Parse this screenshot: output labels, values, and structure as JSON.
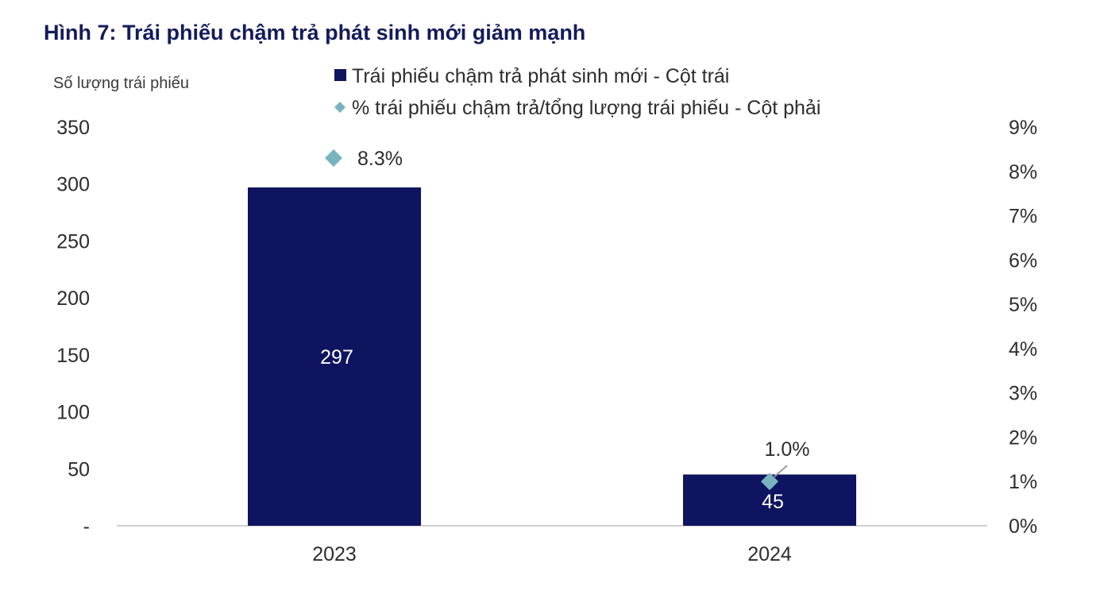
{
  "figure_title": "Hình 7: Trái phiếu chậm trả phát sinh mới giảm mạnh",
  "chart_data": {
    "type": "bar",
    "title": "Hình 7: Trái phiếu chậm trả phát sinh mới giảm mạnh",
    "ylabel": "Số lượng trái phiếu",
    "ylabel_right": "",
    "xlabel": "",
    "categories": [
      "2023",
      "2024"
    ],
    "ylim": [
      0,
      350
    ],
    "ylim_right": [
      0,
      9
    ],
    "y_ticks": [
      "-",
      "50",
      "100",
      "150",
      "200",
      "250",
      "300",
      "350"
    ],
    "y_right_ticks": [
      "0%",
      "1%",
      "2%",
      "3%",
      "4%",
      "5%",
      "6%",
      "7%",
      "8%",
      "9%"
    ],
    "legend_position": "top",
    "grid": false,
    "series": [
      {
        "name": "Trái phiếu chậm trả phát sinh mới - Cột trái",
        "type": "bar",
        "axis": "left",
        "values": [
          297,
          45
        ],
        "labels": [
          "297",
          "45"
        ],
        "color": "#0f1460"
      },
      {
        "name": "% trái phiếu chậm trả/tổng lượng trái phiếu - Cột phải",
        "type": "scatter",
        "marker": "diamond",
        "axis": "right",
        "values": [
          8.3,
          1.0
        ],
        "labels": [
          "8.3%",
          "1.0%"
        ],
        "color": "#78b4be"
      }
    ]
  }
}
